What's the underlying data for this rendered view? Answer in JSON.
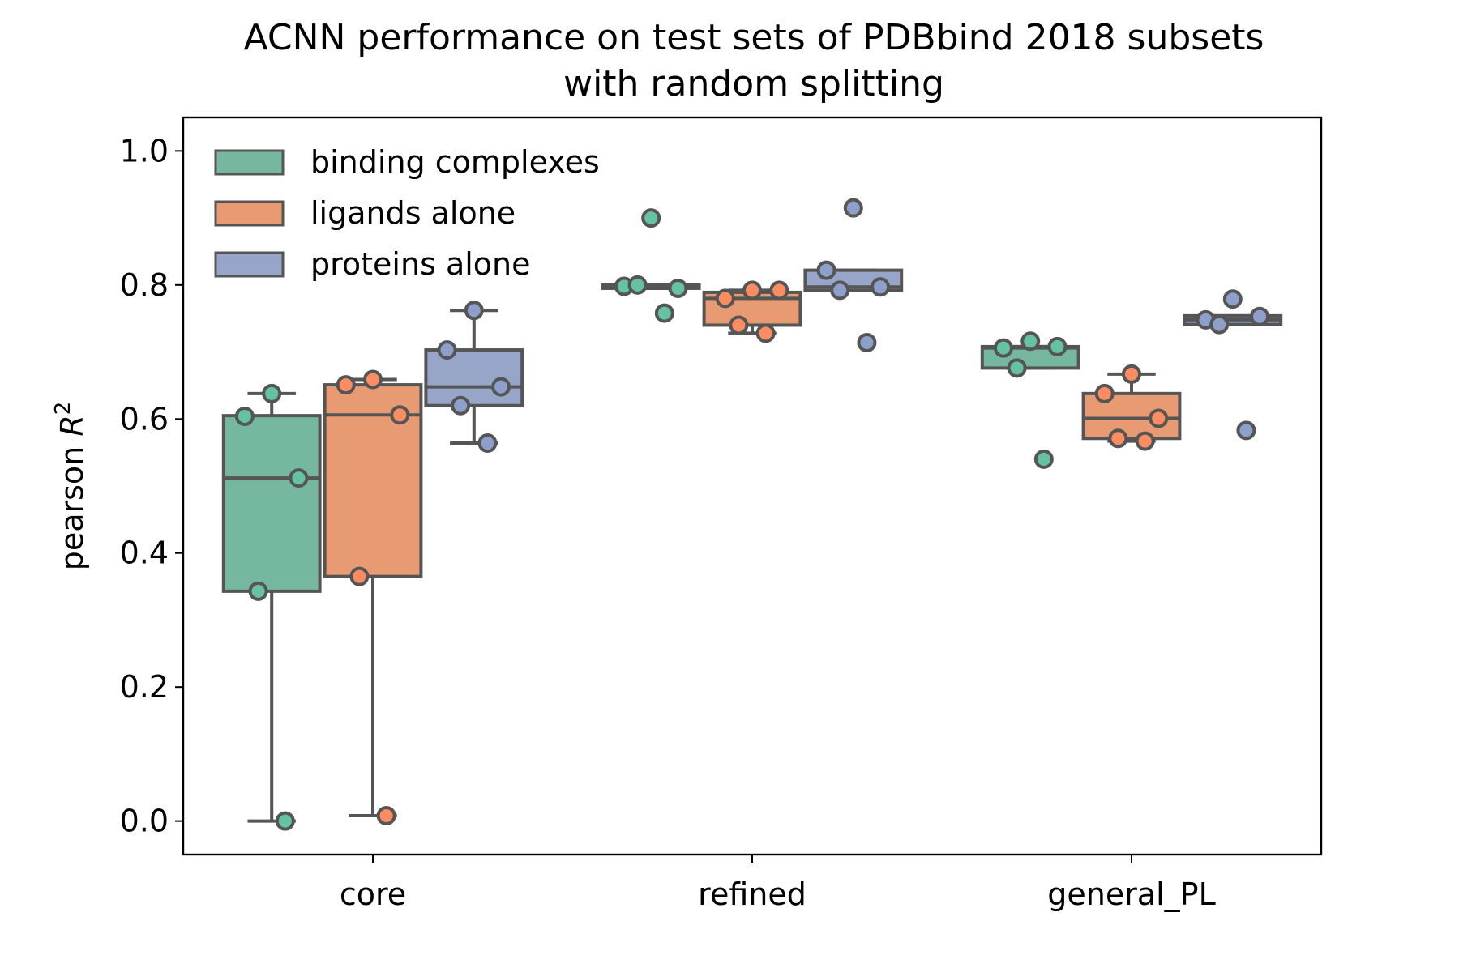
{
  "chart_data": {
    "type": "box",
    "title_line1": "ACNN performance on test sets of PDBbind 2018 subsets",
    "title_line2": "with random splitting",
    "xlabel": "",
    "ylabel_prefix": "pearson ",
    "ylabel_var": "R",
    "ylabel_sup": "2",
    "ylim": [
      -0.05,
      1.05
    ],
    "yticks": [
      "0.0",
      "0.2",
      "0.4",
      "0.6",
      "0.8",
      "1.0"
    ],
    "categories": [
      "core",
      "refined",
      "general_PL"
    ],
    "legend_position": "upper left",
    "grid": false,
    "colors": {
      "binding complexes": "#76b7a0",
      "ligands alone": "#e89a73",
      "proteins alone": "#97a6c8",
      "edge": "#555555"
    },
    "point_colors": {
      "binding complexes": "#66c2a5",
      "ligands alone": "#fc8d62",
      "proteins alone": "#8da0cb"
    },
    "series": [
      {
        "name": "binding complexes",
        "boxes": [
          {
            "category": "core",
            "whislo": 0.0,
            "q1": 0.343,
            "med": 0.512,
            "q3": 0.605,
            "whishi": 0.638,
            "points": [
              0.638,
              0.604,
              0.512,
              0.343,
              0.0
            ]
          },
          {
            "category": "refined",
            "whislo": 0.795,
            "q1": 0.795,
            "med": 0.797,
            "q3": 0.8,
            "whishi": 0.8,
            "points": [
              0.9,
              0.798,
              0.795,
              0.8,
              0.758
            ]
          },
          {
            "category": "general_PL",
            "whislo": 0.676,
            "q1": 0.676,
            "med": 0.706,
            "q3": 0.708,
            "whishi": 0.708,
            "points": [
              0.716,
              0.706,
              0.708,
              0.676,
              0.54
            ]
          }
        ]
      },
      {
        "name": "ligands alone",
        "boxes": [
          {
            "category": "core",
            "whislo": 0.008,
            "q1": 0.365,
            "med": 0.606,
            "q3": 0.651,
            "whishi": 0.659,
            "points": [
              0.659,
              0.651,
              0.606,
              0.365,
              0.008
            ]
          },
          {
            "category": "refined",
            "whislo": 0.728,
            "q1": 0.74,
            "med": 0.78,
            "q3": 0.789,
            "whishi": 0.792,
            "points": [
              0.792,
              0.78,
              0.792,
              0.74,
              0.728
            ]
          },
          {
            "category": "general_PL",
            "whislo": 0.567,
            "q1": 0.571,
            "med": 0.601,
            "q3": 0.638,
            "whishi": 0.667,
            "points": [
              0.667,
              0.638,
              0.601,
              0.571,
              0.567
            ]
          }
        ]
      },
      {
        "name": "proteins alone",
        "boxes": [
          {
            "category": "core",
            "whislo": 0.564,
            "q1": 0.62,
            "med": 0.648,
            "q3": 0.703,
            "whishi": 0.762,
            "points": [
              0.762,
              0.703,
              0.648,
              0.62,
              0.564
            ]
          },
          {
            "category": "refined",
            "whislo": 0.792,
            "q1": 0.792,
            "med": 0.797,
            "q3": 0.822,
            "whishi": 0.822,
            "points": [
              0.915,
              0.822,
              0.797,
              0.792,
              0.714
            ]
          },
          {
            "category": "general_PL",
            "whislo": 0.741,
            "q1": 0.741,
            "med": 0.748,
            "q3": 0.754,
            "whishi": 0.754,
            "points": [
              0.779,
              0.748,
              0.753,
              0.741,
              0.583
            ]
          }
        ]
      }
    ]
  }
}
